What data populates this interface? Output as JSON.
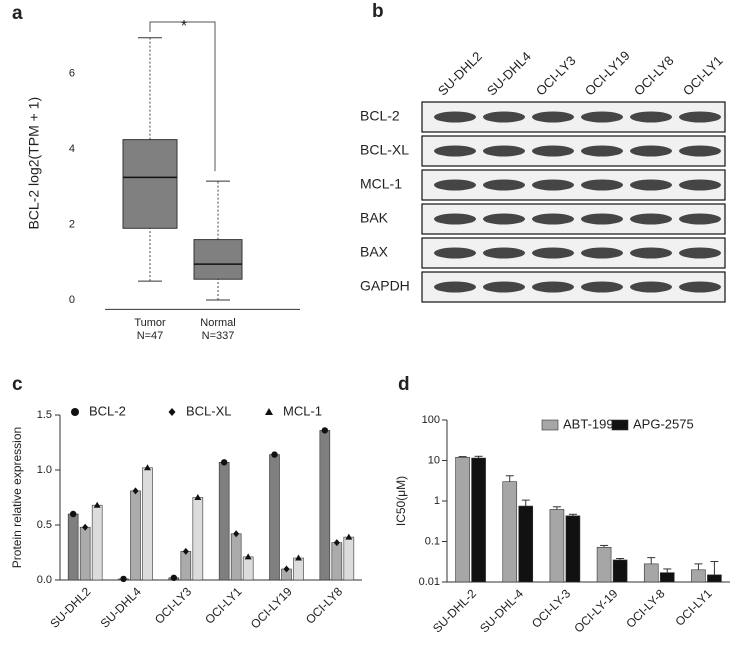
{
  "chart_data": [
    {
      "type": "box",
      "panel": "a",
      "ylabel": "BCL-2 log2(TPM + 1)",
      "categories": [
        "Tumor",
        "Normal"
      ],
      "category_notes": [
        "N=47",
        "N=337"
      ],
      "boxes": [
        {
          "whisker_low": 0.5,
          "q1": 1.9,
          "median": 3.25,
          "q3": 4.25,
          "whisker_high": 6.95
        },
        {
          "whisker_low": 0,
          "q1": 0.55,
          "median": 0.95,
          "q3": 1.6,
          "whisker_high": 3.15
        }
      ],
      "color": "#808080",
      "ylim": [
        -0.25,
        7.5
      ],
      "yticks": [
        0,
        2,
        4,
        6
      ],
      "annotation": "*"
    },
    {
      "type": "bar",
      "panel": "c",
      "ylabel": "Protein relative expression",
      "categories": [
        "SU-DHL2",
        "SU-DHL4",
        "OCI-LY3",
        "OCI-LY1",
        "OCI-LY19",
        "OCI-LY8"
      ],
      "series": [
        {
          "name": "BCL-2",
          "color": "#7f7f7f",
          "marker": "circle",
          "values": [
            0.6,
            0.01,
            0.02,
            1.07,
            1.14,
            1.36
          ]
        },
        {
          "name": "BCL-XL",
          "color": "#ababab",
          "marker": "diamond",
          "values": [
            0.48,
            0.81,
            0.26,
            0.42,
            0.1,
            0.34
          ]
        },
        {
          "name": "MCL-1",
          "color": "#dcdcdc",
          "marker": "triangle",
          "values": [
            0.68,
            1.02,
            0.75,
            0.21,
            0.2,
            0.39
          ]
        }
      ],
      "ylim": [
        0,
        1.5
      ],
      "yticks": [
        {
          "value": 0,
          "label": "0.0"
        },
        0.5,
        {
          "value": 1,
          "label": "1.0"
        },
        1.5
      ]
    },
    {
      "type": "bar",
      "panel": "d",
      "ylabel": "IC50(μM)",
      "log_scale": true,
      "categories": [
        "SU-DHL-2",
        "SU-DHL-4",
        "OCI-LY-3",
        "OCI-LY-19",
        "OCI-LY-8",
        "OCI-LY1"
      ],
      "series": [
        {
          "name": "ABT-199",
          "color": "#a6a6a6",
          "values": [
            12,
            3.0,
            0.62,
            0.072,
            0.028,
            0.02
          ],
          "errors": [
            0.5,
            1.2,
            0.1,
            0.008,
            0.012,
            0.008
          ]
        },
        {
          "name": "APG-2575",
          "color": "#111111",
          "values": [
            11.5,
            0.75,
            0.43,
            0.035,
            0.017,
            0.015
          ],
          "errors": [
            1.2,
            0.3,
            0.04,
            0.003,
            0.004,
            0.017
          ]
        }
      ],
      "ylim": [
        0.01,
        100
      ],
      "yticks": [
        0.01,
        0.1,
        1,
        10,
        100
      ]
    }
  ],
  "blot": {
    "panel": "b",
    "columns": [
      "SU-DHL2",
      "SU-DHL4",
      "OCI-LY3",
      "OCI-LY19",
      "OCI-LY8",
      "OCI-LY1"
    ],
    "rows": [
      "BCL-2",
      "BCL-XL",
      "MCL-1",
      "BAK",
      "BAX",
      "GAPDH"
    ]
  }
}
